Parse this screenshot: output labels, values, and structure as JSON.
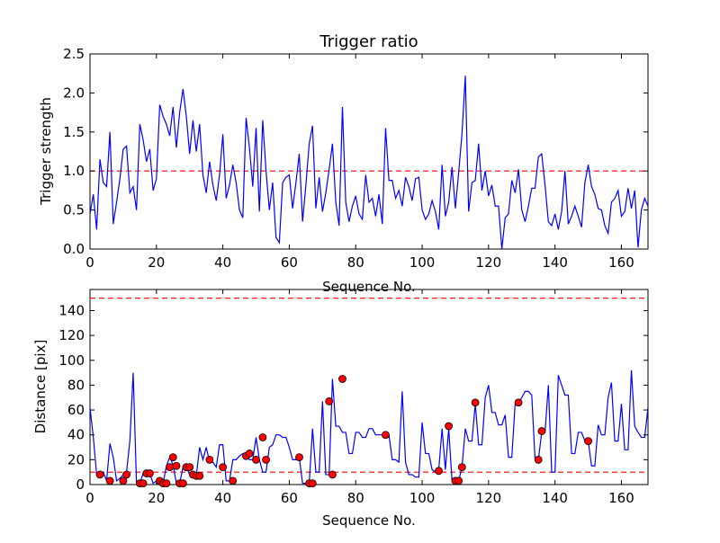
{
  "chart_data": [
    {
      "type": "line",
      "title": "Trigger ratio",
      "xlabel": "Sequence No.",
      "ylabel": "Trigger strength",
      "xlim": [
        0,
        168
      ],
      "ylim": [
        0,
        2.5
      ],
      "xticks": [
        0,
        20,
        40,
        60,
        80,
        100,
        120,
        140,
        160
      ],
      "xtick_labels": [
        "0",
        "20",
        "40",
        "60",
        "80",
        "100",
        "120",
        "140",
        "160"
      ],
      "yticks": [
        0,
        0.5,
        1.0,
        1.5,
        2.0,
        2.5
      ],
      "ytick_labels": [
        "0.0",
        "0.5",
        "1.0",
        "1.5",
        "2.0",
        "2.5"
      ],
      "series": [
        {
          "name": "Trigger strength",
          "color": "#0000ff",
          "x": [
            0,
            1,
            2,
            3,
            4,
            5,
            6,
            7,
            8,
            9,
            10,
            11,
            12,
            13,
            14,
            15,
            16,
            17,
            18,
            19,
            20,
            21,
            22,
            23,
            24,
            25,
            26,
            27,
            28,
            29,
            30,
            31,
            32,
            33,
            34,
            35,
            36,
            37,
            38,
            39,
            40,
            41,
            42,
            43,
            44,
            45,
            46,
            47,
            48,
            49,
            50,
            51,
            52,
            53,
            54,
            55,
            56,
            57,
            58,
            59,
            60,
            61,
            62,
            63,
            64,
            65,
            66,
            67,
            68,
            69,
            70,
            71,
            72,
            73,
            74,
            75,
            76,
            77,
            78,
            79,
            80,
            81,
            82,
            83,
            84,
            85,
            86,
            87,
            88,
            89,
            90,
            91,
            92,
            93,
            94,
            95,
            96,
            97,
            98,
            99,
            100,
            101,
            102,
            103,
            104,
            105,
            106,
            107,
            108,
            109,
            110,
            111,
            112,
            113,
            114,
            115,
            116,
            117,
            118,
            119,
            120,
            121,
            122,
            123,
            124,
            125,
            126,
            127,
            128,
            129,
            130,
            131,
            132,
            133,
            134,
            135,
            136,
            137,
            138,
            139,
            140,
            141,
            142,
            143,
            144,
            145,
            146,
            147,
            148,
            149,
            150,
            151,
            152,
            153,
            154,
            155,
            156,
            157,
            158,
            159,
            160,
            161,
            162,
            163,
            164,
            165,
            166,
            167,
            168
          ],
          "y": [
            0.45,
            0.7,
            0.25,
            1.15,
            0.85,
            0.8,
            1.5,
            0.32,
            0.6,
            0.9,
            1.28,
            1.32,
            0.72,
            0.8,
            0.5,
            1.6,
            1.4,
            1.12,
            1.28,
            0.75,
            0.9,
            1.85,
            1.7,
            1.6,
            1.45,
            1.82,
            1.3,
            1.75,
            2.05,
            1.7,
            1.22,
            1.65,
            1.25,
            1.6,
            0.95,
            0.72,
            1.12,
            0.82,
            0.62,
            0.95,
            1.47,
            0.65,
            0.82,
            1.08,
            0.85,
            0.5,
            0.4,
            1.68,
            1.3,
            0.8,
            1.55,
            0.48,
            1.65,
            1.0,
            0.5,
            0.85,
            0.15,
            0.08,
            0.85,
            0.92,
            0.95,
            0.52,
            0.85,
            1.22,
            0.35,
            0.82,
            1.35,
            1.58,
            0.52,
            0.92,
            0.48,
            0.72,
            1.02,
            1.35,
            0.6,
            0.3,
            1.82,
            0.6,
            0.35,
            0.55,
            0.68,
            0.45,
            0.38,
            0.95,
            0.6,
            0.65,
            0.42,
            0.7,
            0.32,
            1.55,
            0.88,
            0.88,
            0.65,
            0.75,
            0.55,
            0.92,
            0.8,
            0.62,
            0.9,
            0.92,
            0.5,
            0.38,
            0.45,
            0.62,
            0.48,
            0.25,
            1.08,
            0.42,
            0.6,
            1.05,
            0.52,
            0.98,
            1.48,
            2.22,
            0.48,
            0.85,
            0.88,
            1.35,
            0.75,
            1.0,
            0.68,
            0.82,
            0.55,
            0.55,
            0.0,
            0.4,
            0.45,
            0.88,
            0.72,
            1.02,
            0.5,
            0.35,
            0.55,
            0.78,
            0.78,
            1.18,
            1.22,
            0.82,
            0.35,
            0.3,
            0.45,
            0.25,
            0.48,
            1.0,
            0.32,
            0.42,
            0.55,
            0.42,
            0.28,
            0.85,
            1.08,
            0.8,
            0.7,
            0.52,
            0.5,
            0.3,
            0.2,
            0.6,
            0.65,
            0.75,
            0.42,
            0.48,
            0.78,
            0.52,
            0.75,
            0.02,
            0.5,
            0.65,
            0.55
          ]
        }
      ],
      "reference_lines": [
        {
          "axis": "y",
          "value": 1.0,
          "color": "#ff0000",
          "style": "dashed"
        }
      ],
      "grid": false
    },
    {
      "type": "line",
      "title": "",
      "xlabel": "Sequence No.",
      "ylabel": "Distance [pix]",
      "xlim": [
        0,
        168
      ],
      "ylim": [
        0,
        157
      ],
      "xticks": [
        0,
        20,
        40,
        60,
        80,
        100,
        120,
        140,
        160
      ],
      "xtick_labels": [
        "0",
        "20",
        "40",
        "60",
        "80",
        "100",
        "120",
        "140",
        "160"
      ],
      "yticks": [
        0,
        20,
        40,
        60,
        80,
        100,
        120,
        140
      ],
      "ytick_labels": [
        "0",
        "20",
        "40",
        "60",
        "80",
        "100",
        "120",
        "140"
      ],
      "series": [
        {
          "name": "Distance",
          "color": "#0000ff",
          "x": [
            0,
            1,
            2,
            3,
            4,
            5,
            6,
            7,
            8,
            9,
            10,
            11,
            12,
            13,
            14,
            15,
            16,
            17,
            18,
            19,
            20,
            21,
            22,
            23,
            24,
            25,
            26,
            27,
            28,
            29,
            30,
            31,
            32,
            33,
            34,
            35,
            36,
            37,
            38,
            39,
            40,
            41,
            42,
            43,
            44,
            45,
            46,
            47,
            48,
            49,
            50,
            51,
            52,
            53,
            54,
            55,
            56,
            57,
            58,
            59,
            60,
            61,
            62,
            63,
            64,
            65,
            66,
            67,
            68,
            69,
            70,
            71,
            72,
            73,
            74,
            75,
            76,
            77,
            78,
            79,
            80,
            81,
            82,
            83,
            84,
            85,
            86,
            87,
            88,
            89,
            90,
            91,
            92,
            93,
            94,
            95,
            96,
            97,
            98,
            99,
            100,
            101,
            102,
            103,
            104,
            105,
            106,
            107,
            108,
            109,
            110,
            111,
            112,
            113,
            114,
            115,
            116,
            117,
            118,
            119,
            120,
            121,
            122,
            123,
            124,
            125,
            126,
            127,
            128,
            129,
            130,
            131,
            132,
            133,
            134,
            135,
            136,
            137,
            138,
            139,
            140,
            141,
            142,
            143,
            144,
            145,
            146,
            147,
            148,
            149,
            150,
            151,
            152,
            153,
            154,
            155,
            156,
            157,
            158,
            159,
            160,
            161,
            162,
            163,
            164,
            165,
            166,
            167,
            168
          ],
          "y": [
            62,
            38,
            8,
            8,
            10,
            3,
            33,
            22,
            3,
            5,
            8,
            10,
            35,
            90,
            1,
            1,
            9,
            9,
            9,
            1,
            3,
            1,
            1,
            15,
            22,
            16,
            1,
            1,
            14,
            14,
            8,
            7,
            7,
            30,
            20,
            30,
            18,
            18,
            14,
            32,
            32,
            3,
            3,
            20,
            20,
            23,
            25,
            25,
            20,
            20,
            38,
            20,
            10,
            10,
            30,
            32,
            40,
            40,
            38,
            38,
            30,
            20,
            20,
            22,
            1,
            1,
            1,
            45,
            10,
            10,
            67,
            8,
            8,
            85,
            47,
            47,
            42,
            42,
            25,
            25,
            42,
            42,
            38,
            38,
            45,
            45,
            40,
            40,
            40,
            42,
            40,
            20,
            20,
            18,
            75,
            18,
            8,
            8,
            6,
            6,
            50,
            25,
            25,
            12,
            10,
            12,
            45,
            12,
            45,
            3,
            3,
            3,
            14,
            45,
            35,
            35,
            65,
            32,
            32,
            70,
            80,
            58,
            58,
            48,
            48,
            56,
            22,
            22,
            65,
            65,
            70,
            75,
            75,
            72,
            20,
            20,
            42,
            42,
            80,
            10,
            10,
            88,
            80,
            72,
            72,
            25,
            25,
            42,
            42,
            35,
            35,
            15,
            15,
            48,
            40,
            40,
            70,
            82,
            35,
            35,
            65,
            28,
            28,
            92,
            47,
            42,
            38,
            38,
            62
          ],
          "markers": [
            {
              "x": 3,
              "y": 8
            },
            {
              "x": 6,
              "y": 3
            },
            {
              "x": 10,
              "y": 3
            },
            {
              "x": 11,
              "y": 8
            },
            {
              "x": 15,
              "y": 1
            },
            {
              "x": 16,
              "y": 1
            },
            {
              "x": 17,
              "y": 9
            },
            {
              "x": 18,
              "y": 9
            },
            {
              "x": 21,
              "y": 3
            },
            {
              "x": 22,
              "y": 1
            },
            {
              "x": 23,
              "y": 1
            },
            {
              "x": 24,
              "y": 14
            },
            {
              "x": 25,
              "y": 22
            },
            {
              "x": 26,
              "y": 15
            },
            {
              "x": 27,
              "y": 1
            },
            {
              "x": 28,
              "y": 1
            },
            {
              "x": 29,
              "y": 14
            },
            {
              "x": 30,
              "y": 14
            },
            {
              "x": 31,
              "y": 8
            },
            {
              "x": 32,
              "y": 7
            },
            {
              "x": 33,
              "y": 7
            },
            {
              "x": 36,
              "y": 20
            },
            {
              "x": 40,
              "y": 14
            },
            {
              "x": 43,
              "y": 3
            },
            {
              "x": 47,
              "y": 23
            },
            {
              "x": 48,
              "y": 25
            },
            {
              "x": 50,
              "y": 20
            },
            {
              "x": 52,
              "y": 38
            },
            {
              "x": 53,
              "y": 20
            },
            {
              "x": 63,
              "y": 22
            },
            {
              "x": 66,
              "y": 1
            },
            {
              "x": 67,
              "y": 1
            },
            {
              "x": 72,
              "y": 67
            },
            {
              "x": 73,
              "y": 8
            },
            {
              "x": 76,
              "y": 85
            },
            {
              "x": 89,
              "y": 40
            },
            {
              "x": 105,
              "y": 11
            },
            {
              "x": 108,
              "y": 47
            },
            {
              "x": 110,
              "y": 3
            },
            {
              "x": 111,
              "y": 3
            },
            {
              "x": 112,
              "y": 14
            },
            {
              "x": 116,
              "y": 66
            },
            {
              "x": 129,
              "y": 66
            },
            {
              "x": 135,
              "y": 20
            },
            {
              "x": 136,
              "y": 43
            },
            {
              "x": 150,
              "y": 35
            }
          ],
          "marker_color": "#ff0000"
        }
      ],
      "reference_lines": [
        {
          "axis": "y",
          "value": 150,
          "color": "#ff0000",
          "style": "dashed"
        },
        {
          "axis": "y",
          "value": 10,
          "color": "#ff0000",
          "style": "dashed"
        }
      ],
      "grid": false
    }
  ]
}
